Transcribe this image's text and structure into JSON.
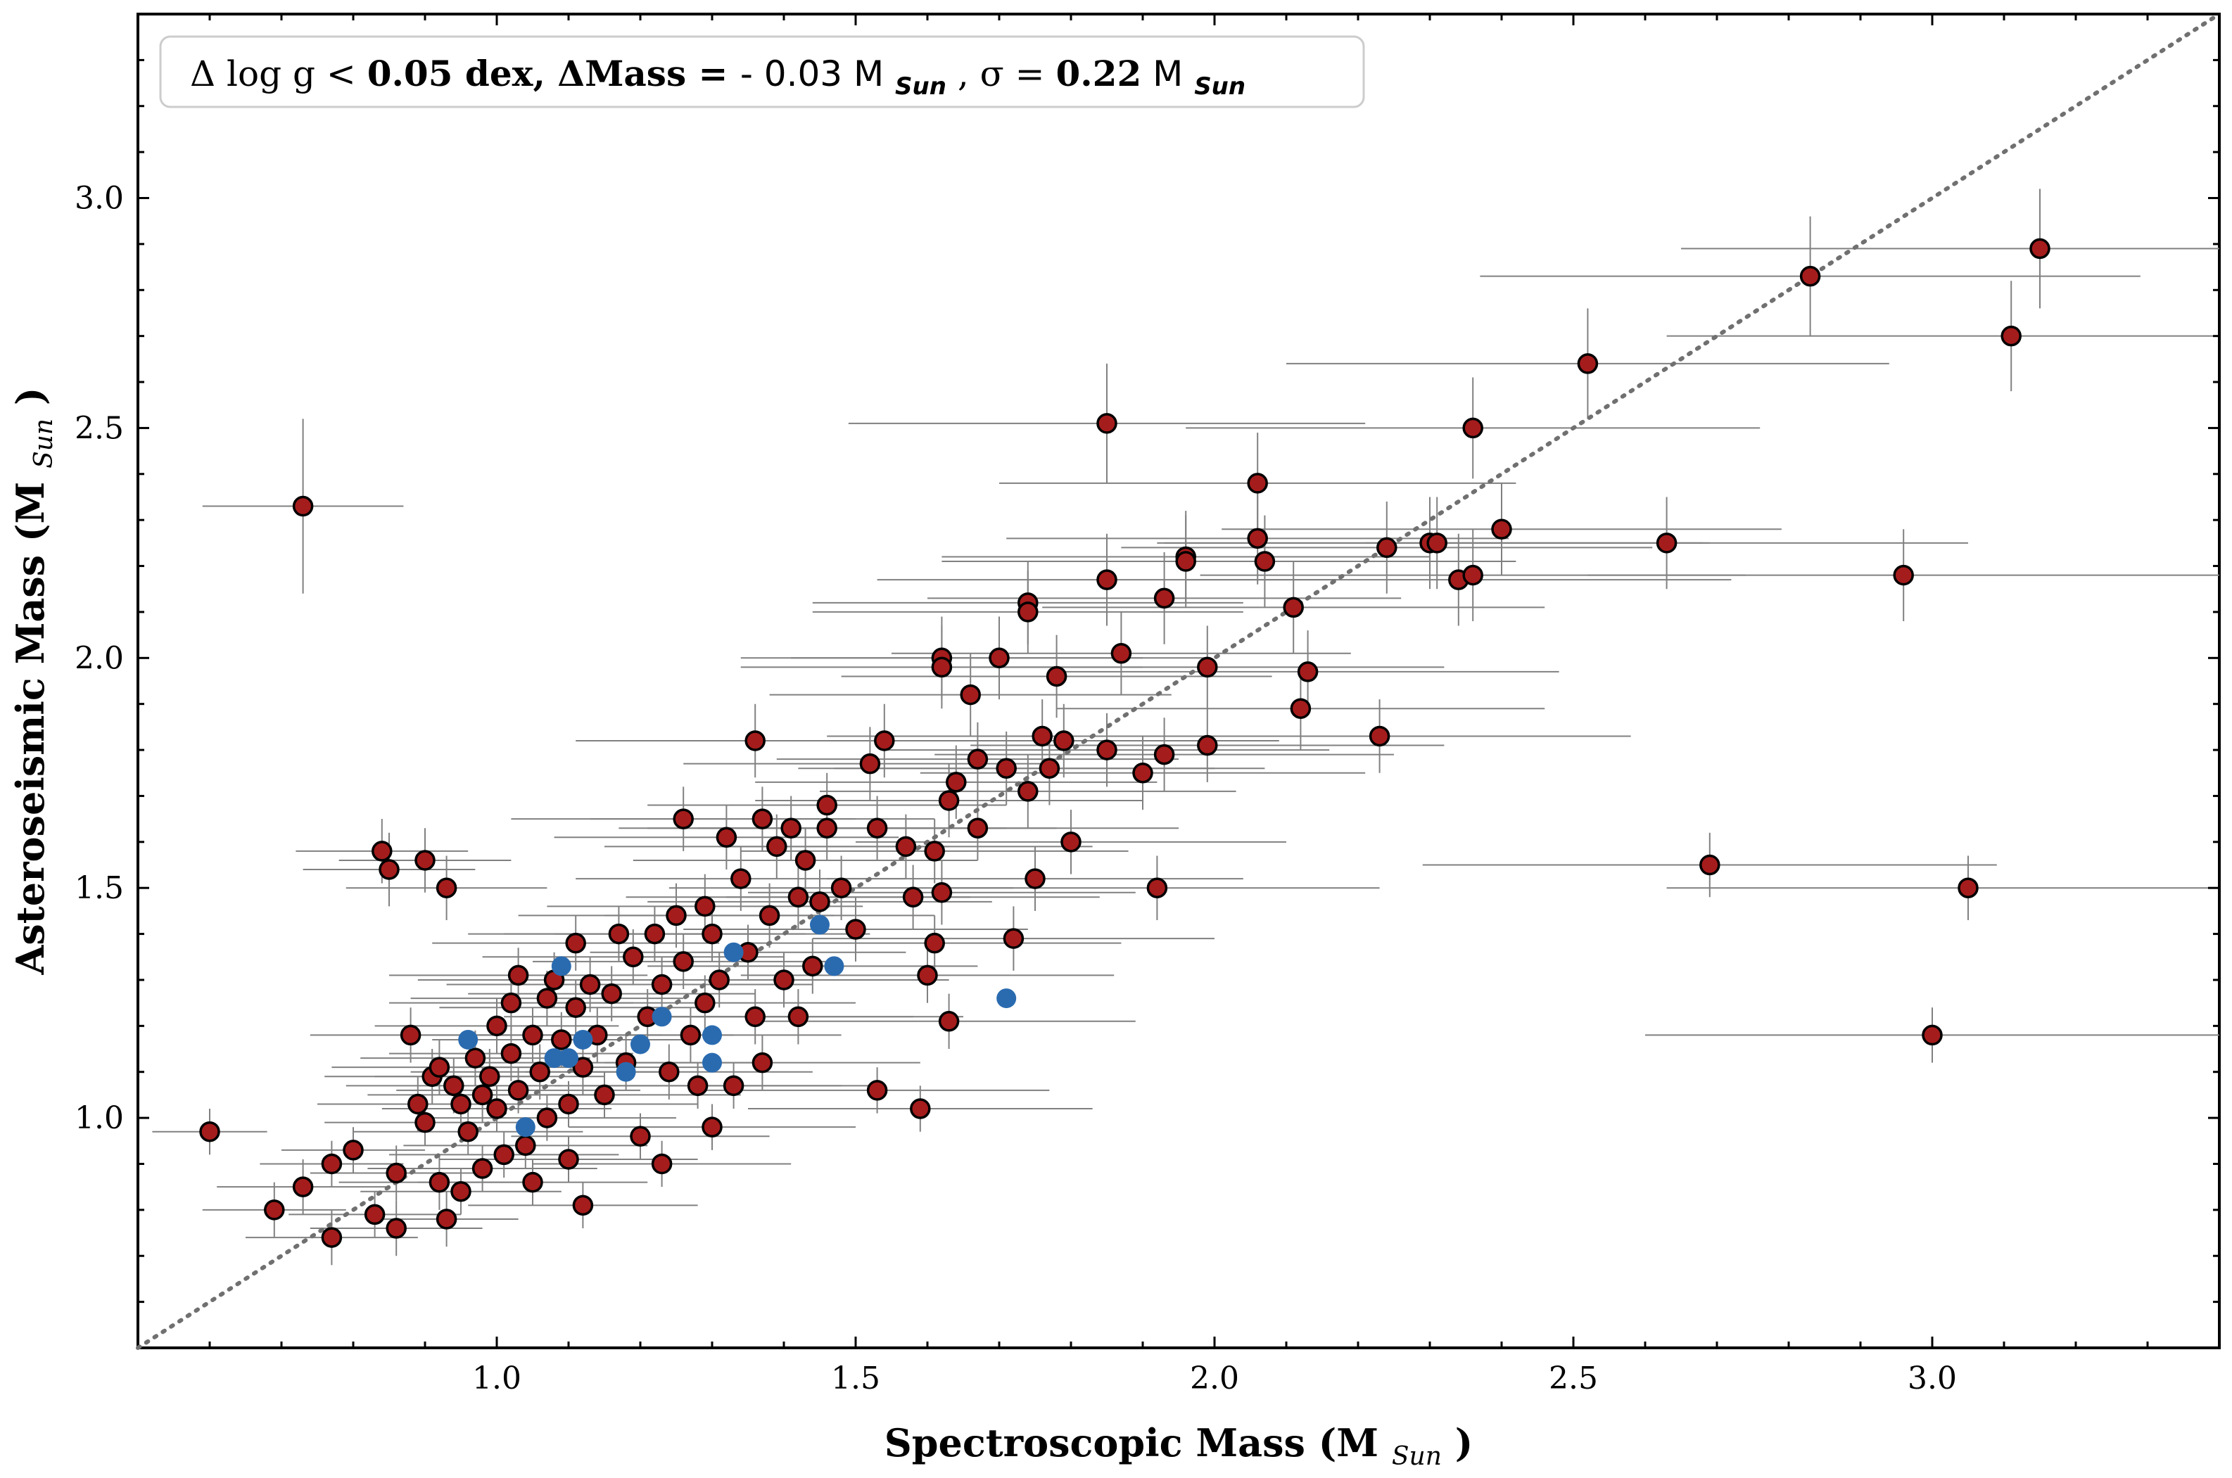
{
  "chart_data": {
    "type": "scatter",
    "xlabel": "Spectroscopic Mass (M",
    "xlabel_sub": "Sun",
    "xlabel_tail": ")",
    "ylabel": "Asteroseismic Mass (M",
    "ylabel_sub": "Sun",
    "ylabel_tail": ")",
    "annotation": {
      "part1": "Δ log g < ",
      "part2": "0.05 dex, ΔMass = ",
      "part3": "- 0.03 M",
      "sub1": "Sun",
      "part4": ", σ = ",
      "part5": "0.22",
      "part6": " M",
      "sub2": "Sun"
    },
    "xlim": [
      0.5,
      3.4
    ],
    "ylim": [
      0.5,
      3.4
    ],
    "xticks": [
      1.0,
      1.5,
      2.0,
      2.5,
      3.0
    ],
    "xtick_labels": [
      "1.0",
      "1.5",
      "2.0",
      "2.5",
      "3.0"
    ],
    "yticks": [
      1.0,
      1.5,
      2.0,
      2.5,
      3.0
    ],
    "ytick_labels": [
      "1.0",
      "1.5",
      "2.0",
      "2.5",
      "3.0"
    ],
    "reference_line": "y = x",
    "colors": {
      "red_marker": "#a51c1c",
      "blue_marker": "#2a6bb0",
      "errorbar": "#808080",
      "one_to_one": "#707070"
    },
    "series": [
      {
        "marker": "red",
        "points": [
          [
            0.73,
            2.33,
            0.14,
            0.19
          ],
          [
            0.6,
            0.97,
            0.08,
            0.05
          ],
          [
            0.69,
            0.8,
            0.1,
            0.06
          ],
          [
            0.73,
            0.85,
            0.12,
            0.06
          ],
          [
            0.77,
            0.74,
            0.12,
            0.06
          ],
          [
            0.77,
            0.9,
            0.1,
            0.05
          ],
          [
            0.8,
            0.93,
            0.1,
            0.05
          ],
          [
            0.83,
            0.79,
            0.12,
            0.05
          ],
          [
            0.84,
            1.58,
            0.12,
            0.07
          ],
          [
            0.85,
            1.54,
            0.12,
            0.08
          ],
          [
            0.86,
            0.88,
            0.12,
            0.06
          ],
          [
            0.86,
            0.76,
            0.12,
            0.06
          ],
          [
            0.9,
            1.56,
            0.12,
            0.07
          ],
          [
            0.92,
            0.86,
            0.14,
            0.06
          ],
          [
            0.93,
            0.78,
            0.1,
            0.06
          ],
          [
            0.93,
            1.5,
            0.14,
            0.07
          ],
          [
            0.95,
            0.84,
            0.14,
            0.05
          ],
          [
            0.88,
            1.18,
            0.14,
            0.06
          ],
          [
            0.89,
            1.03,
            0.14,
            0.06
          ],
          [
            0.9,
            0.99,
            0.14,
            0.05
          ],
          [
            0.91,
            1.09,
            0.15,
            0.06
          ],
          [
            0.92,
            1.11,
            0.15,
            0.06
          ],
          [
            0.94,
            1.07,
            0.15,
            0.06
          ],
          [
            0.95,
            1.03,
            0.16,
            0.06
          ],
          [
            0.96,
            0.97,
            0.16,
            0.05
          ],
          [
            0.97,
            1.13,
            0.16,
            0.06
          ],
          [
            0.98,
            1.05,
            0.16,
            0.06
          ],
          [
            0.98,
            0.89,
            0.16,
            0.05
          ],
          [
            0.99,
            1.09,
            0.16,
            0.06
          ],
          [
            1.0,
            1.2,
            0.17,
            0.06
          ],
          [
            1.0,
            1.02,
            0.16,
            0.05
          ],
          [
            1.01,
            0.92,
            0.16,
            0.05
          ],
          [
            1.02,
            1.14,
            0.17,
            0.06
          ],
          [
            1.02,
            1.25,
            0.17,
            0.06
          ],
          [
            1.03,
            1.31,
            0.18,
            0.06
          ],
          [
            1.03,
            1.06,
            0.17,
            0.05
          ],
          [
            1.04,
            0.94,
            0.17,
            0.05
          ],
          [
            1.05,
            1.18,
            0.18,
            0.06
          ],
          [
            1.05,
            0.86,
            0.16,
            0.05
          ],
          [
            1.06,
            1.1,
            0.18,
            0.06
          ],
          [
            1.07,
            1.0,
            0.18,
            0.05
          ],
          [
            1.07,
            1.26,
            0.19,
            0.06
          ],
          [
            1.08,
            1.3,
            0.19,
            0.06
          ],
          [
            1.09,
            1.17,
            0.18,
            0.06
          ],
          [
            1.1,
            1.03,
            0.18,
            0.05
          ],
          [
            1.1,
            0.91,
            0.18,
            0.05
          ],
          [
            1.11,
            1.24,
            0.19,
            0.06
          ],
          [
            1.11,
            1.38,
            0.2,
            0.06
          ],
          [
            1.12,
            1.11,
            0.19,
            0.06
          ],
          [
            1.12,
            0.81,
            0.16,
            0.05
          ],
          [
            1.13,
            1.29,
            0.2,
            0.06
          ],
          [
            1.14,
            1.18,
            0.19,
            0.06
          ],
          [
            1.15,
            1.05,
            0.19,
            0.05
          ],
          [
            1.16,
            1.27,
            0.2,
            0.06
          ],
          [
            1.17,
            1.4,
            0.21,
            0.06
          ],
          [
            1.18,
            1.12,
            0.2,
            0.06
          ],
          [
            1.19,
            1.35,
            0.21,
            0.06
          ],
          [
            1.2,
            0.96,
            0.18,
            0.05
          ],
          [
            1.21,
            1.22,
            0.2,
            0.06
          ],
          [
            1.22,
            1.4,
            0.21,
            0.06
          ],
          [
            1.23,
            1.29,
            0.21,
            0.06
          ],
          [
            1.23,
            0.9,
            0.18,
            0.05
          ],
          [
            1.24,
            1.1,
            0.2,
            0.06
          ],
          [
            1.25,
            1.44,
            0.22,
            0.07
          ],
          [
            1.26,
            1.65,
            0.24,
            0.07
          ],
          [
            1.26,
            1.34,
            0.21,
            0.06
          ],
          [
            1.27,
            1.18,
            0.21,
            0.06
          ],
          [
            1.28,
            1.07,
            0.2,
            0.05
          ],
          [
            1.29,
            1.46,
            0.22,
            0.07
          ],
          [
            1.29,
            1.25,
            0.21,
            0.06
          ],
          [
            1.3,
            1.4,
            0.22,
            0.06
          ],
          [
            1.3,
            0.98,
            0.2,
            0.05
          ],
          [
            1.31,
            1.3,
            0.22,
            0.06
          ],
          [
            1.32,
            1.61,
            0.24,
            0.07
          ],
          [
            1.33,
            1.07,
            0.21,
            0.05
          ],
          [
            1.34,
            1.52,
            0.23,
            0.07
          ],
          [
            1.35,
            1.36,
            0.22,
            0.06
          ],
          [
            1.36,
            1.22,
            0.22,
            0.06
          ],
          [
            1.36,
            1.82,
            0.25,
            0.08
          ],
          [
            1.37,
            1.65,
            0.24,
            0.07
          ],
          [
            1.37,
            1.12,
            0.22,
            0.06
          ],
          [
            1.38,
            1.44,
            0.23,
            0.07
          ],
          [
            1.39,
            1.59,
            0.24,
            0.07
          ],
          [
            1.4,
            1.3,
            0.23,
            0.06
          ],
          [
            1.41,
            1.63,
            0.24,
            0.07
          ],
          [
            1.42,
            1.22,
            0.23,
            0.06
          ],
          [
            1.42,
            1.48,
            0.24,
            0.07
          ],
          [
            1.43,
            1.56,
            0.24,
            0.07
          ],
          [
            1.44,
            1.33,
            0.23,
            0.06
          ],
          [
            1.45,
            1.47,
            0.24,
            0.07
          ],
          [
            1.46,
            1.68,
            0.25,
            0.07
          ],
          [
            1.46,
            1.63,
            0.25,
            0.07
          ],
          [
            1.48,
            1.5,
            0.24,
            0.07
          ],
          [
            1.5,
            1.41,
            0.24,
            0.07
          ],
          [
            1.52,
            1.77,
            0.26,
            0.08
          ],
          [
            1.53,
            1.63,
            0.25,
            0.07
          ],
          [
            1.53,
            1.06,
            0.24,
            0.05
          ],
          [
            1.54,
            1.82,
            0.26,
            0.08
          ],
          [
            1.57,
            1.59,
            0.26,
            0.07
          ],
          [
            1.58,
            1.48,
            0.26,
            0.07
          ],
          [
            1.59,
            1.02,
            0.24,
            0.05
          ],
          [
            1.6,
            1.31,
            0.26,
            0.06
          ],
          [
            1.61,
            1.38,
            0.26,
            0.06
          ],
          [
            1.61,
            1.58,
            0.27,
            0.07
          ],
          [
            1.62,
            1.49,
            0.27,
            0.07
          ],
          [
            1.62,
            2.0,
            0.28,
            0.09
          ],
          [
            1.62,
            1.98,
            0.28,
            0.09
          ],
          [
            1.63,
            1.69,
            0.27,
            0.08
          ],
          [
            1.63,
            1.21,
            0.26,
            0.06
          ],
          [
            1.64,
            1.73,
            0.28,
            0.08
          ],
          [
            1.66,
            1.92,
            0.28,
            0.09
          ],
          [
            1.67,
            1.78,
            0.28,
            0.08
          ],
          [
            1.67,
            1.63,
            0.28,
            0.07
          ],
          [
            1.7,
            2.0,
            0.29,
            0.09
          ],
          [
            1.71,
            1.76,
            0.29,
            0.08
          ],
          [
            1.72,
            1.39,
            0.28,
            0.07
          ],
          [
            1.74,
            2.12,
            0.3,
            0.09
          ],
          [
            1.74,
            2.1,
            0.3,
            0.09
          ],
          [
            1.74,
            1.71,
            0.29,
            0.08
          ],
          [
            1.75,
            1.52,
            0.29,
            0.07
          ],
          [
            1.76,
            1.83,
            0.3,
            0.08
          ],
          [
            1.77,
            1.76,
            0.3,
            0.08
          ],
          [
            1.78,
            1.96,
            0.3,
            0.09
          ],
          [
            1.79,
            1.82,
            0.3,
            0.08
          ],
          [
            1.8,
            1.6,
            0.3,
            0.07
          ],
          [
            1.85,
            2.51,
            0.36,
            0.13
          ],
          [
            1.85,
            2.17,
            0.32,
            0.1
          ],
          [
            1.85,
            1.8,
            0.31,
            0.08
          ],
          [
            1.87,
            2.01,
            0.32,
            0.09
          ],
          [
            1.9,
            1.75,
            0.31,
            0.08
          ],
          [
            1.92,
            1.5,
            0.31,
            0.07
          ],
          [
            1.93,
            2.13,
            0.33,
            0.1
          ],
          [
            1.93,
            1.79,
            0.32,
            0.08
          ],
          [
            1.96,
            2.22,
            0.34,
            0.1
          ],
          [
            1.96,
            2.21,
            0.34,
            0.1
          ],
          [
            1.99,
            1.98,
            0.33,
            0.09
          ],
          [
            1.99,
            1.81,
            0.33,
            0.08
          ],
          [
            2.06,
            2.38,
            0.36,
            0.11
          ],
          [
            2.06,
            2.26,
            0.35,
            0.1
          ],
          [
            2.07,
            2.21,
            0.35,
            0.1
          ],
          [
            2.11,
            2.11,
            0.35,
            0.1
          ],
          [
            2.12,
            1.89,
            0.34,
            0.09
          ],
          [
            2.13,
            1.97,
            0.35,
            0.09
          ],
          [
            2.23,
            1.83,
            0.35,
            0.08
          ],
          [
            2.24,
            2.24,
            0.37,
            0.1
          ],
          [
            2.3,
            2.25,
            0.38,
            0.1
          ],
          [
            2.31,
            2.25,
            0.38,
            0.1
          ],
          [
            2.34,
            2.17,
            0.38,
            0.1
          ],
          [
            2.36,
            2.5,
            0.4,
            0.11
          ],
          [
            2.36,
            2.18,
            0.38,
            0.1
          ],
          [
            2.4,
            2.28,
            0.39,
            0.1
          ],
          [
            2.52,
            2.64,
            0.42,
            0.12
          ],
          [
            2.63,
            2.25,
            0.42,
            0.1
          ],
          [
            2.69,
            1.55,
            0.4,
            0.07
          ],
          [
            2.83,
            2.83,
            0.46,
            0.13
          ],
          [
            3.11,
            2.7,
            0.48,
            0.12
          ],
          [
            3.15,
            2.89,
            0.5,
            0.13
          ],
          [
            2.96,
            2.18,
            0.44,
            0.1
          ],
          [
            3.05,
            1.5,
            0.42,
            0.07
          ],
          [
            3.0,
            1.18,
            0.4,
            0.06
          ]
        ]
      },
      {
        "marker": "blue",
        "points": [
          [
            0.96,
            1.17
          ],
          [
            1.04,
            0.98
          ],
          [
            1.08,
            1.13
          ],
          [
            1.09,
            1.33
          ],
          [
            1.1,
            1.13
          ],
          [
            1.12,
            1.17
          ],
          [
            1.18,
            1.1
          ],
          [
            1.2,
            1.16
          ],
          [
            1.23,
            1.22
          ],
          [
            1.3,
            1.18
          ],
          [
            1.3,
            1.12
          ],
          [
            1.33,
            1.36
          ],
          [
            1.45,
            1.42
          ],
          [
            1.47,
            1.33
          ],
          [
            1.71,
            1.26
          ]
        ]
      }
    ]
  }
}
